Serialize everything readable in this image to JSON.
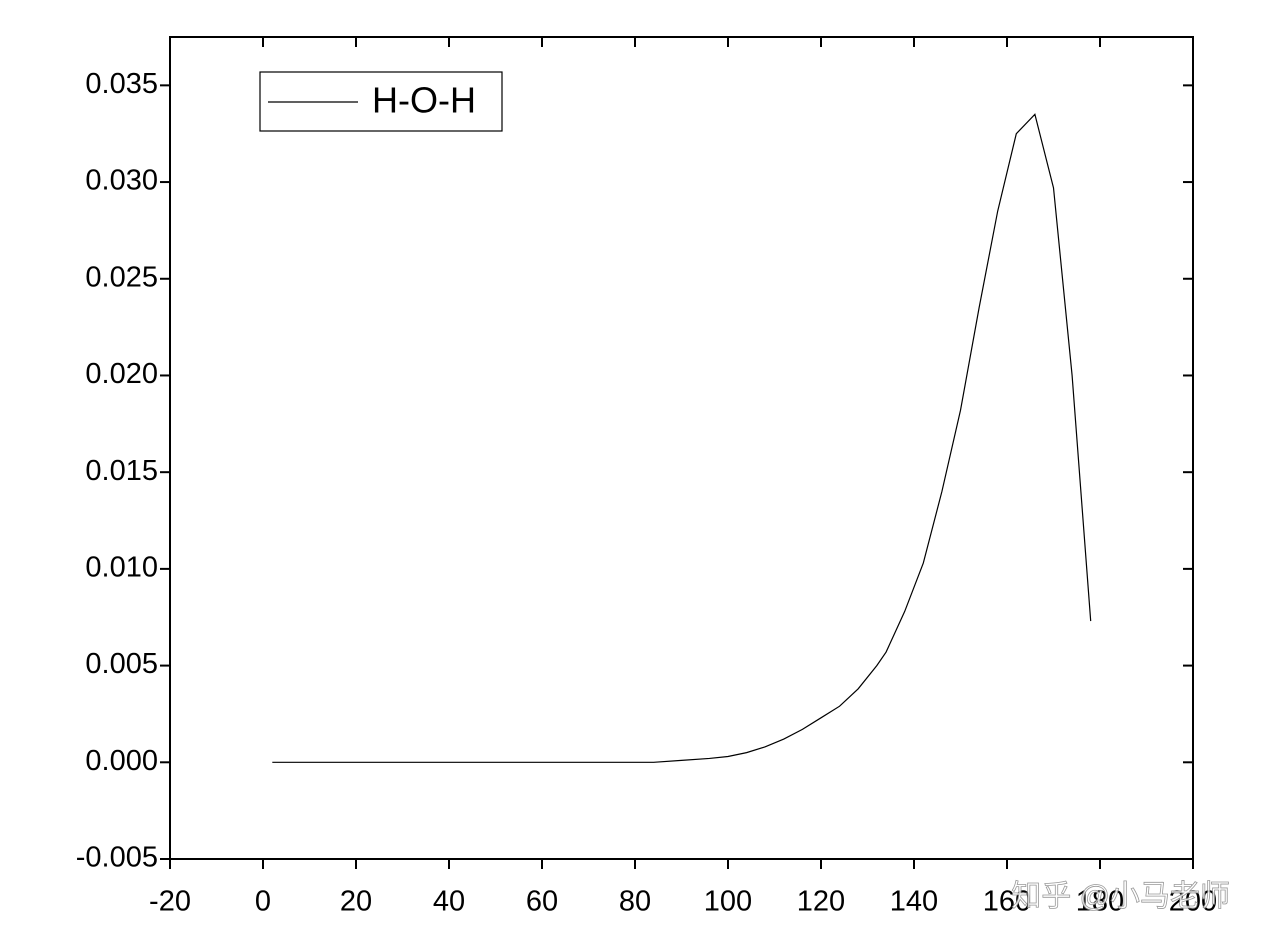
{
  "chart_data": {
    "type": "line",
    "x": [
      2,
      10,
      20,
      30,
      40,
      50,
      60,
      70,
      80,
      84,
      90,
      96,
      100,
      104,
      108,
      112,
      116,
      120,
      124,
      128,
      132,
      134,
      138,
      142,
      146,
      150,
      154,
      158,
      162,
      166,
      170,
      174,
      178
    ],
    "series": [
      {
        "name": "H-O-H",
        "color": "#000000",
        "values": [
          0,
          0,
          0,
          0,
          0,
          0,
          0,
          0,
          0,
          0,
          0.0001,
          0.0002,
          0.0003,
          0.0005,
          0.0008,
          0.0012,
          0.0017,
          0.0023,
          0.0029,
          0.0038,
          0.005,
          0.0057,
          0.0078,
          0.0103,
          0.014,
          0.0182,
          0.0235,
          0.0285,
          0.0325,
          0.0335,
          0.0297,
          0.02,
          0.0073
        ]
      }
    ],
    "xlim": [
      -20,
      200
    ],
    "xticks": [
      -20,
      0,
      20,
      40,
      60,
      80,
      100,
      120,
      140,
      160,
      180,
      200
    ],
    "ylim": [
      -0.005,
      0.0375
    ],
    "yticks": [
      {
        "value": -0.005,
        "label": "-0.005"
      },
      {
        "value": 0,
        "label": "0.000"
      },
      {
        "value": 0.005,
        "label": "0.005"
      },
      {
        "value": 0.01,
        "label": "0.010"
      },
      {
        "value": 0.015,
        "label": "0.015"
      },
      {
        "value": 0.02,
        "label": "0.020"
      },
      {
        "value": 0.025,
        "label": "0.025"
      },
      {
        "value": 0.03,
        "label": "0.030"
      },
      {
        "value": 0.035,
        "label": "0.035"
      }
    ],
    "grid": false,
    "legend": "upper-left",
    "watermark": "知乎 @小马老师"
  }
}
